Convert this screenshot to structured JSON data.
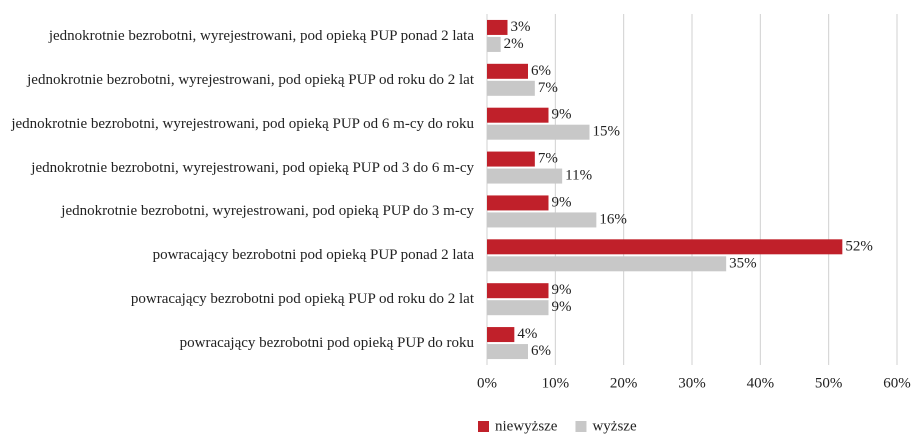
{
  "chart_data": {
    "type": "bar",
    "orientation": "horizontal",
    "categories": [
      "jednokrotnie bezrobotni, wyrejestrowani, pod opieką PUP ponad 2 lata",
      "jednokrotnie bezrobotni, wyrejestrowani, pod opieką PUP od roku do 2 lat",
      "jednokrotnie bezrobotni, wyrejestrowani, pod opieką PUP od 6 m-cy do roku",
      "jednokrotnie bezrobotni, wyrejestrowani, pod opieką PUP od 3 do 6 m-cy",
      "jednokrotnie bezrobotni, wyrejestrowani, pod opieką PUP do 3 m-cy",
      "powracający bezrobotni pod opieką PUP ponad 2 lata",
      "powracający bezrobotni pod opieką PUP od roku do 2 lat",
      "powracający bezrobotni pod opieką PUP do roku"
    ],
    "series": [
      {
        "name": "niewyższe",
        "color": "#c0202a",
        "values": [
          3,
          6,
          9,
          7,
          9,
          52,
          9,
          4
        ],
        "value_labels": [
          "3%",
          "6%",
          "9%",
          "7%",
          "9%",
          "52%",
          "9%",
          "4%"
        ]
      },
      {
        "name": "wyższe",
        "color": "#c8c8c8",
        "values": [
          2,
          7,
          15,
          11,
          16,
          35,
          9,
          6
        ],
        "value_labels": [
          "2%",
          "7%",
          "15%",
          "11%",
          "16%",
          "35%",
          "9%",
          "6%"
        ]
      }
    ],
    "xlim": [
      0,
      60
    ],
    "xticks": [
      {
        "value": 0,
        "label": "0%"
      },
      {
        "value": 10,
        "label": "10%"
      },
      {
        "value": 20,
        "label": "20%"
      },
      {
        "value": 30,
        "label": "30%"
      },
      {
        "value": 40,
        "label": "40%"
      },
      {
        "value": 50,
        "label": "50%"
      },
      {
        "value": 60,
        "label": "60%"
      }
    ],
    "grid": true,
    "legend": "bottom"
  }
}
